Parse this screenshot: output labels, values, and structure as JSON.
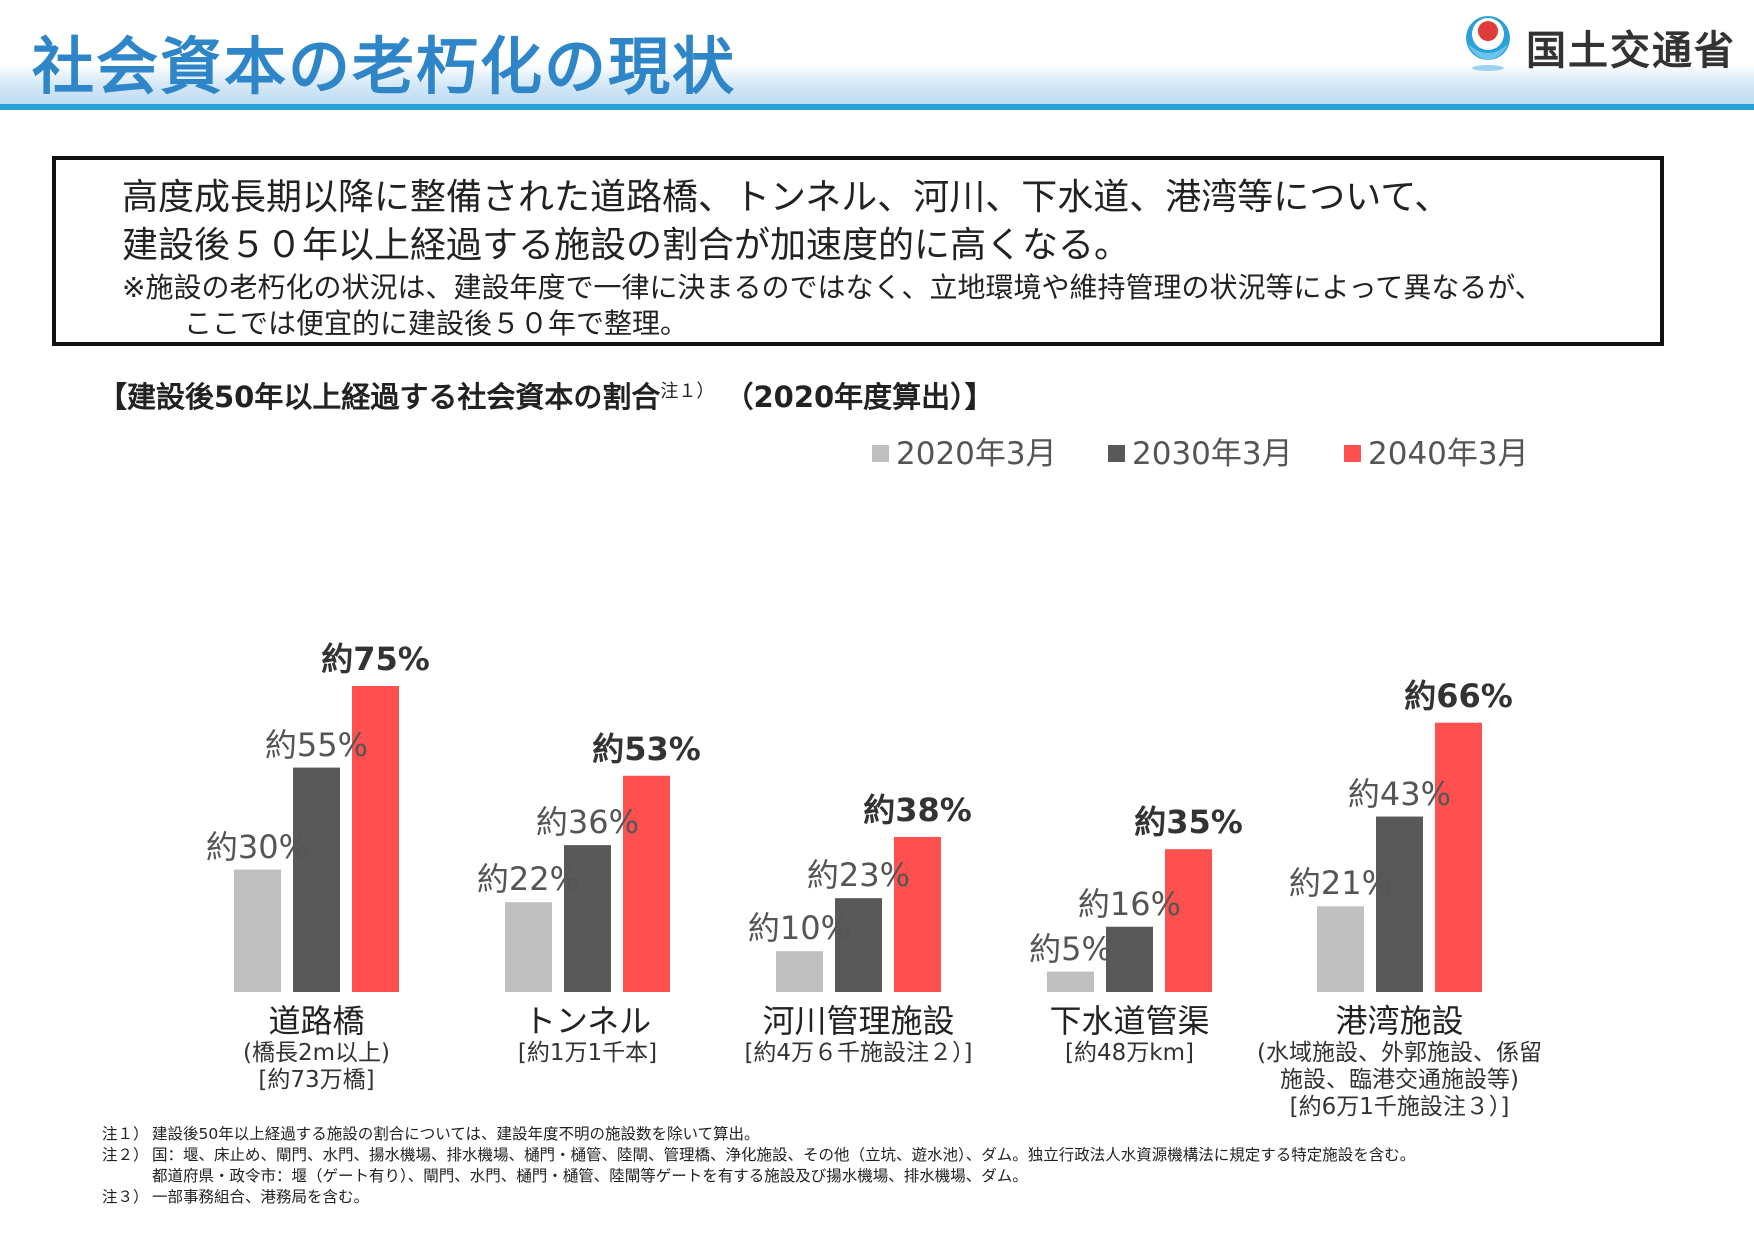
{
  "header": {
    "title": "社会資本の老朽化の現状",
    "ministry": "国土交通省"
  },
  "summary": {
    "line1": "高度成長期以降に整備された道路橋、トンネル、河川、下水道、港湾等について、",
    "line2": "建設後５０年以上経過する施設の割合が加速度的に高くなる。",
    "note1": "※施設の老朽化の状況は、建設年度で一律に決まるのではなく、立地環境や維持管理の状況等によって異なるが、",
    "note2": "ここでは便宜的に建設後５０年で整理。"
  },
  "colors": {
    "accent": "#2e86c8",
    "series_2020": "#bfbfbf",
    "series_2030": "#595959",
    "series_2040": "#ff5050"
  },
  "chart_data": {
    "type": "bar",
    "title": "【建設後50年以上経過する社会資本の割合",
    "title_note": "注１）",
    "title_suffix": "（2020年度算出）】",
    "categories": [
      "道路橋",
      "トンネル",
      "河川管理施設",
      "下水道管渠",
      "港湾施設"
    ],
    "category_details": [
      [
        "(橋長2m以上)",
        "[約73万橋]"
      ],
      [
        "[約1万1千本]"
      ],
      [
        "[約4万６千施設注２）]"
      ],
      [
        "[約48万km]"
      ],
      [
        "(水域施設、外郭施設、係留",
        "施設、臨港交通施設等)",
        "[約6万1千施設注３）]"
      ]
    ],
    "series": [
      {
        "name": "2020年3月",
        "values": [
          30,
          22,
          10,
          5,
          21
        ],
        "labels": [
          "約30%",
          "約22%",
          "約10%",
          "約5%",
          "約21%"
        ]
      },
      {
        "name": "2030年3月",
        "values": [
          55,
          36,
          23,
          16,
          43
        ],
        "labels": [
          "約55%",
          "約36%",
          "約23%",
          "約16%",
          "約43%"
        ]
      },
      {
        "name": "2040年3月",
        "values": [
          75,
          53,
          38,
          35,
          66
        ],
        "labels": [
          "約75%",
          "約53%",
          "約38%",
          "約35%",
          "約66%"
        ]
      }
    ],
    "ylim": [
      0,
      100
    ],
    "xlabel": "",
    "ylabel": "",
    "grid": false
  },
  "footnotes": [
    {
      "label": "注１）",
      "lines": [
        "建設後50年以上経過する施設の割合については、建設年度不明の施設数を除いて算出。"
      ]
    },
    {
      "label": "注２）",
      "lines": [
        "国：堰、床止め、閘門、水門、揚水機場、排水機場、樋門・樋管、陸閘、管理橋、浄化施設、その他（立坑、遊水池）、ダム。独立行政法人水資源機構法に規定する特定施設を含む。",
        "都道府県・政令市：堰（ゲート有り）、閘門、水門、樋門・樋管、陸閘等ゲートを有する施設及び揚水機場、排水機場、ダム。"
      ]
    },
    {
      "label": "注３）",
      "lines": [
        "一部事務組合、港務局を含む。"
      ]
    }
  ]
}
